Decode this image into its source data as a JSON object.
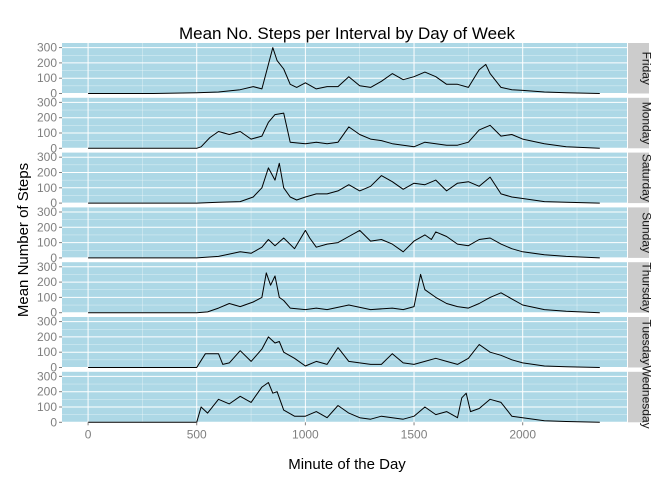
{
  "chart_data": {
    "type": "line",
    "title": "Mean No. Steps per Interval by Day of Week",
    "xlabel": "Minute of the Day",
    "ylabel": "Mean Number of Steps",
    "xlim": [
      -120,
      2480
    ],
    "ylim": [
      0,
      330
    ],
    "x_ticks": [
      0,
      500,
      1000,
      1500,
      2000
    ],
    "x_tick_labels": [
      "0",
      "500",
      "1000",
      "1500",
      "2000"
    ],
    "y_ticks": [
      0,
      100,
      200,
      300
    ],
    "y_tick_labels": [
      "0",
      "100",
      "200",
      "300"
    ],
    "grid": true,
    "panel_background": "#add8e6",
    "strip_background": "#cccccc",
    "line_color": "#000000",
    "grid_color": "#ffffff",
    "panels": [
      {
        "label": "Friday",
        "x": [
          0,
          300,
          500,
          600,
          700,
          760,
          800,
          830,
          850,
          870,
          900,
          930,
          960,
          1000,
          1050,
          1100,
          1150,
          1200,
          1250,
          1300,
          1350,
          1400,
          1450,
          1500,
          1550,
          1600,
          1650,
          1700,
          1750,
          1800,
          1830,
          1850,
          1900,
          1950,
          2000,
          2100,
          2200,
          2355
        ],
        "y": [
          0,
          0,
          5,
          10,
          25,
          45,
          30,
          190,
          300,
          215,
          160,
          60,
          40,
          70,
          30,
          45,
          45,
          110,
          50,
          40,
          80,
          130,
          90,
          110,
          140,
          110,
          60,
          60,
          40,
          155,
          190,
          130,
          40,
          25,
          20,
          10,
          5,
          0
        ]
      },
      {
        "label": "Monday",
        "x": [
          0,
          300,
          500,
          520,
          560,
          600,
          650,
          700,
          750,
          800,
          830,
          860,
          900,
          930,
          1000,
          1050,
          1100,
          1150,
          1200,
          1250,
          1300,
          1350,
          1400,
          1450,
          1500,
          1550,
          1600,
          1650,
          1700,
          1750,
          1800,
          1850,
          1900,
          1950,
          2000,
          2100,
          2200,
          2355
        ],
        "y": [
          0,
          0,
          0,
          10,
          70,
          110,
          90,
          110,
          60,
          80,
          170,
          220,
          230,
          40,
          30,
          40,
          30,
          40,
          140,
          90,
          60,
          50,
          30,
          20,
          10,
          40,
          30,
          20,
          20,
          40,
          120,
          150,
          80,
          90,
          60,
          30,
          10,
          0
        ]
      },
      {
        "label": "Saturday",
        "x": [
          0,
          300,
          500,
          600,
          700,
          760,
          800,
          830,
          860,
          880,
          900,
          930,
          960,
          1000,
          1050,
          1100,
          1150,
          1200,
          1250,
          1300,
          1350,
          1400,
          1450,
          1500,
          1550,
          1600,
          1650,
          1700,
          1750,
          1800,
          1850,
          1900,
          1950,
          2000,
          2100,
          2200,
          2355
        ],
        "y": [
          0,
          0,
          0,
          5,
          10,
          40,
          100,
          230,
          150,
          260,
          100,
          40,
          20,
          40,
          60,
          60,
          80,
          120,
          80,
          110,
          180,
          140,
          90,
          130,
          120,
          150,
          80,
          130,
          140,
          110,
          170,
          60,
          40,
          30,
          10,
          5,
          0
        ]
      },
      {
        "label": "Sunday",
        "x": [
          0,
          300,
          500,
          550,
          600,
          700,
          750,
          800,
          830,
          860,
          900,
          950,
          1000,
          1020,
          1050,
          1100,
          1150,
          1200,
          1250,
          1300,
          1350,
          1400,
          1450,
          1500,
          1550,
          1580,
          1600,
          1650,
          1700,
          1750,
          1800,
          1850,
          1900,
          1950,
          2000,
          2100,
          2200,
          2355
        ],
        "y": [
          0,
          0,
          0,
          5,
          10,
          40,
          30,
          70,
          120,
          80,
          130,
          60,
          180,
          130,
          70,
          90,
          100,
          140,
          180,
          110,
          120,
          90,
          40,
          110,
          150,
          120,
          170,
          140,
          90,
          80,
          120,
          130,
          90,
          60,
          40,
          20,
          10,
          0
        ]
      },
      {
        "label": "Thursday",
        "x": [
          0,
          300,
          500,
          550,
          600,
          650,
          700,
          760,
          800,
          820,
          840,
          860,
          880,
          900,
          930,
          1000,
          1050,
          1100,
          1200,
          1300,
          1400,
          1450,
          1500,
          1530,
          1550,
          1600,
          1650,
          1700,
          1750,
          1800,
          1850,
          1900,
          1950,
          2000,
          2100,
          2200,
          2355
        ],
        "y": [
          0,
          0,
          0,
          5,
          30,
          60,
          40,
          70,
          100,
          260,
          180,
          240,
          100,
          80,
          30,
          20,
          30,
          20,
          50,
          20,
          30,
          20,
          40,
          250,
          150,
          100,
          60,
          40,
          30,
          60,
          100,
          130,
          90,
          50,
          20,
          10,
          0
        ]
      },
      {
        "label": "Tuesday",
        "x": [
          0,
          300,
          500,
          540,
          600,
          620,
          650,
          700,
          750,
          800,
          830,
          860,
          880,
          900,
          950,
          1000,
          1050,
          1100,
          1150,
          1200,
          1250,
          1300,
          1350,
          1400,
          1450,
          1500,
          1550,
          1600,
          1650,
          1700,
          1750,
          1800,
          1850,
          1900,
          1950,
          2000,
          2100,
          2200,
          2355
        ],
        "y": [
          0,
          0,
          0,
          90,
          90,
          20,
          30,
          110,
          40,
          120,
          200,
          160,
          170,
          100,
          60,
          10,
          40,
          20,
          130,
          40,
          30,
          20,
          20,
          90,
          30,
          20,
          40,
          60,
          40,
          20,
          60,
          150,
          100,
          80,
          50,
          30,
          10,
          5,
          0
        ]
      },
      {
        "label": "Wednesday",
        "x": [
          0,
          300,
          500,
          520,
          550,
          600,
          650,
          700,
          750,
          800,
          830,
          850,
          870,
          900,
          950,
          1000,
          1050,
          1100,
          1150,
          1200,
          1250,
          1300,
          1350,
          1400,
          1450,
          1500,
          1550,
          1600,
          1650,
          1700,
          1720,
          1740,
          1760,
          1800,
          1850,
          1900,
          1950,
          2000,
          2100,
          2200,
          2355
        ],
        "y": [
          0,
          0,
          0,
          100,
          60,
          150,
          120,
          170,
          130,
          230,
          260,
          190,
          200,
          80,
          40,
          40,
          70,
          30,
          110,
          60,
          30,
          20,
          40,
          30,
          20,
          40,
          100,
          50,
          70,
          30,
          160,
          190,
          70,
          90,
          150,
          130,
          40,
          30,
          10,
          5,
          0
        ]
      }
    ]
  }
}
